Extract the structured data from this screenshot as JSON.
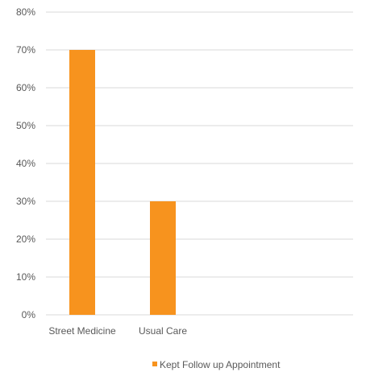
{
  "chart_data": {
    "type": "bar",
    "categories": [
      "Street Medicine",
      "Usual Care"
    ],
    "series": [
      {
        "name": "Kept Follow up Appointment",
        "values": [
          70,
          30
        ],
        "color": "#F7931E"
      }
    ],
    "ylim": [
      0,
      80
    ],
    "yticks": [
      0,
      10,
      20,
      30,
      40,
      50,
      60,
      70,
      80
    ],
    "ytick_labels": [
      "0%",
      "10%",
      "20%",
      "30%",
      "40%",
      "50%",
      "60%",
      "70%",
      "80%"
    ],
    "grid": true,
    "legend_position": "bottom",
    "gridline_color": "#d9d9d9"
  }
}
